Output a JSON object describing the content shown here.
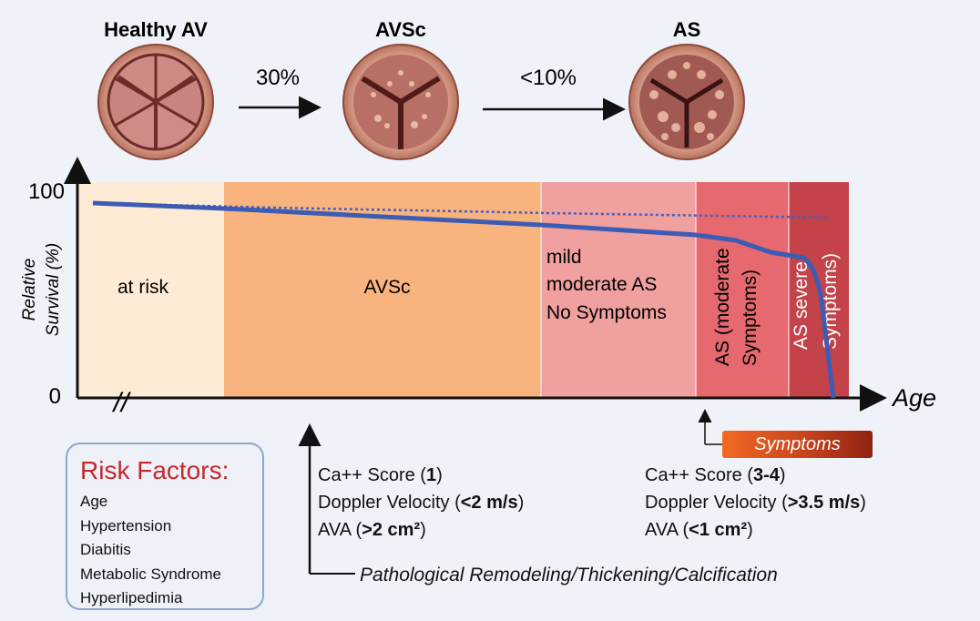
{
  "valves": [
    {
      "label": "Healthy AV"
    },
    {
      "label": "AVSc"
    },
    {
      "label": "AS"
    }
  ],
  "transitions": [
    {
      "label": "30%"
    },
    {
      "label": "<10%"
    }
  ],
  "axis": {
    "y_label_line1": "Relative",
    "y_label_line2": "Survival (%)",
    "y_top": "100",
    "y_bottom": "0",
    "x_label": "Age",
    "break_mark": "//"
  },
  "zones": [
    {
      "line1": "at risk",
      "color": "#fdebd6"
    },
    {
      "line1": "AVSc",
      "color": "#f9b37f"
    },
    {
      "line1": "mild",
      "line2": "moderate AS",
      "line3": "No Symptoms",
      "color": "#efa09f"
    },
    {
      "line1": "AS (moderate",
      "line2": "Symptoms)",
      "color": "#e5696e"
    },
    {
      "line1": "AS severe",
      "line2": "Symptoms)",
      "color": "#c4424a"
    }
  ],
  "colors": {
    "survival_line": "#3c5cb4",
    "background": "#eff2f8",
    "risk_title": "#c4282b"
  },
  "chart_data": {
    "type": "line",
    "series": [
      {
        "values": [
          100,
          97,
          92,
          82,
          73,
          69,
          0
        ],
        "style": "solid"
      },
      {
        "values": [
          100,
          97,
          94,
          93
        ],
        "style": "dotted"
      }
    ]
  },
  "symptoms_label": "Symptoms",
  "risk": {
    "title": "Risk Factors:",
    "items": [
      "Age",
      "Hypertension",
      "Diabitis",
      "Metabolic Syndrome",
      "Hyperlipedimia"
    ]
  },
  "criteria_left": {
    "l1_pre": "Ca++ Score (",
    "l1_bold": "1",
    "l1_post": ")",
    "l2_pre": "Doppler Velocity (",
    "l2_bold": "<2 m/s",
    "l2_post": ")",
    "l3_pre": "AVA (",
    "l3_bold": ">2 cm²",
    "l3_post": ")"
  },
  "criteria_right": {
    "l1_pre": "Ca++ Score (",
    "l1_bold": "3-4",
    "l1_post": ")",
    "l2_pre": "Doppler Velocity (",
    "l2_bold": ">3.5 m/s",
    "l2_post": ")",
    "l3_pre": "AVA (",
    "l3_bold": "<1 cm²",
    "l3_post": ")"
  },
  "pathology_label": "Pathological Remodeling/Thickening/Calcification"
}
